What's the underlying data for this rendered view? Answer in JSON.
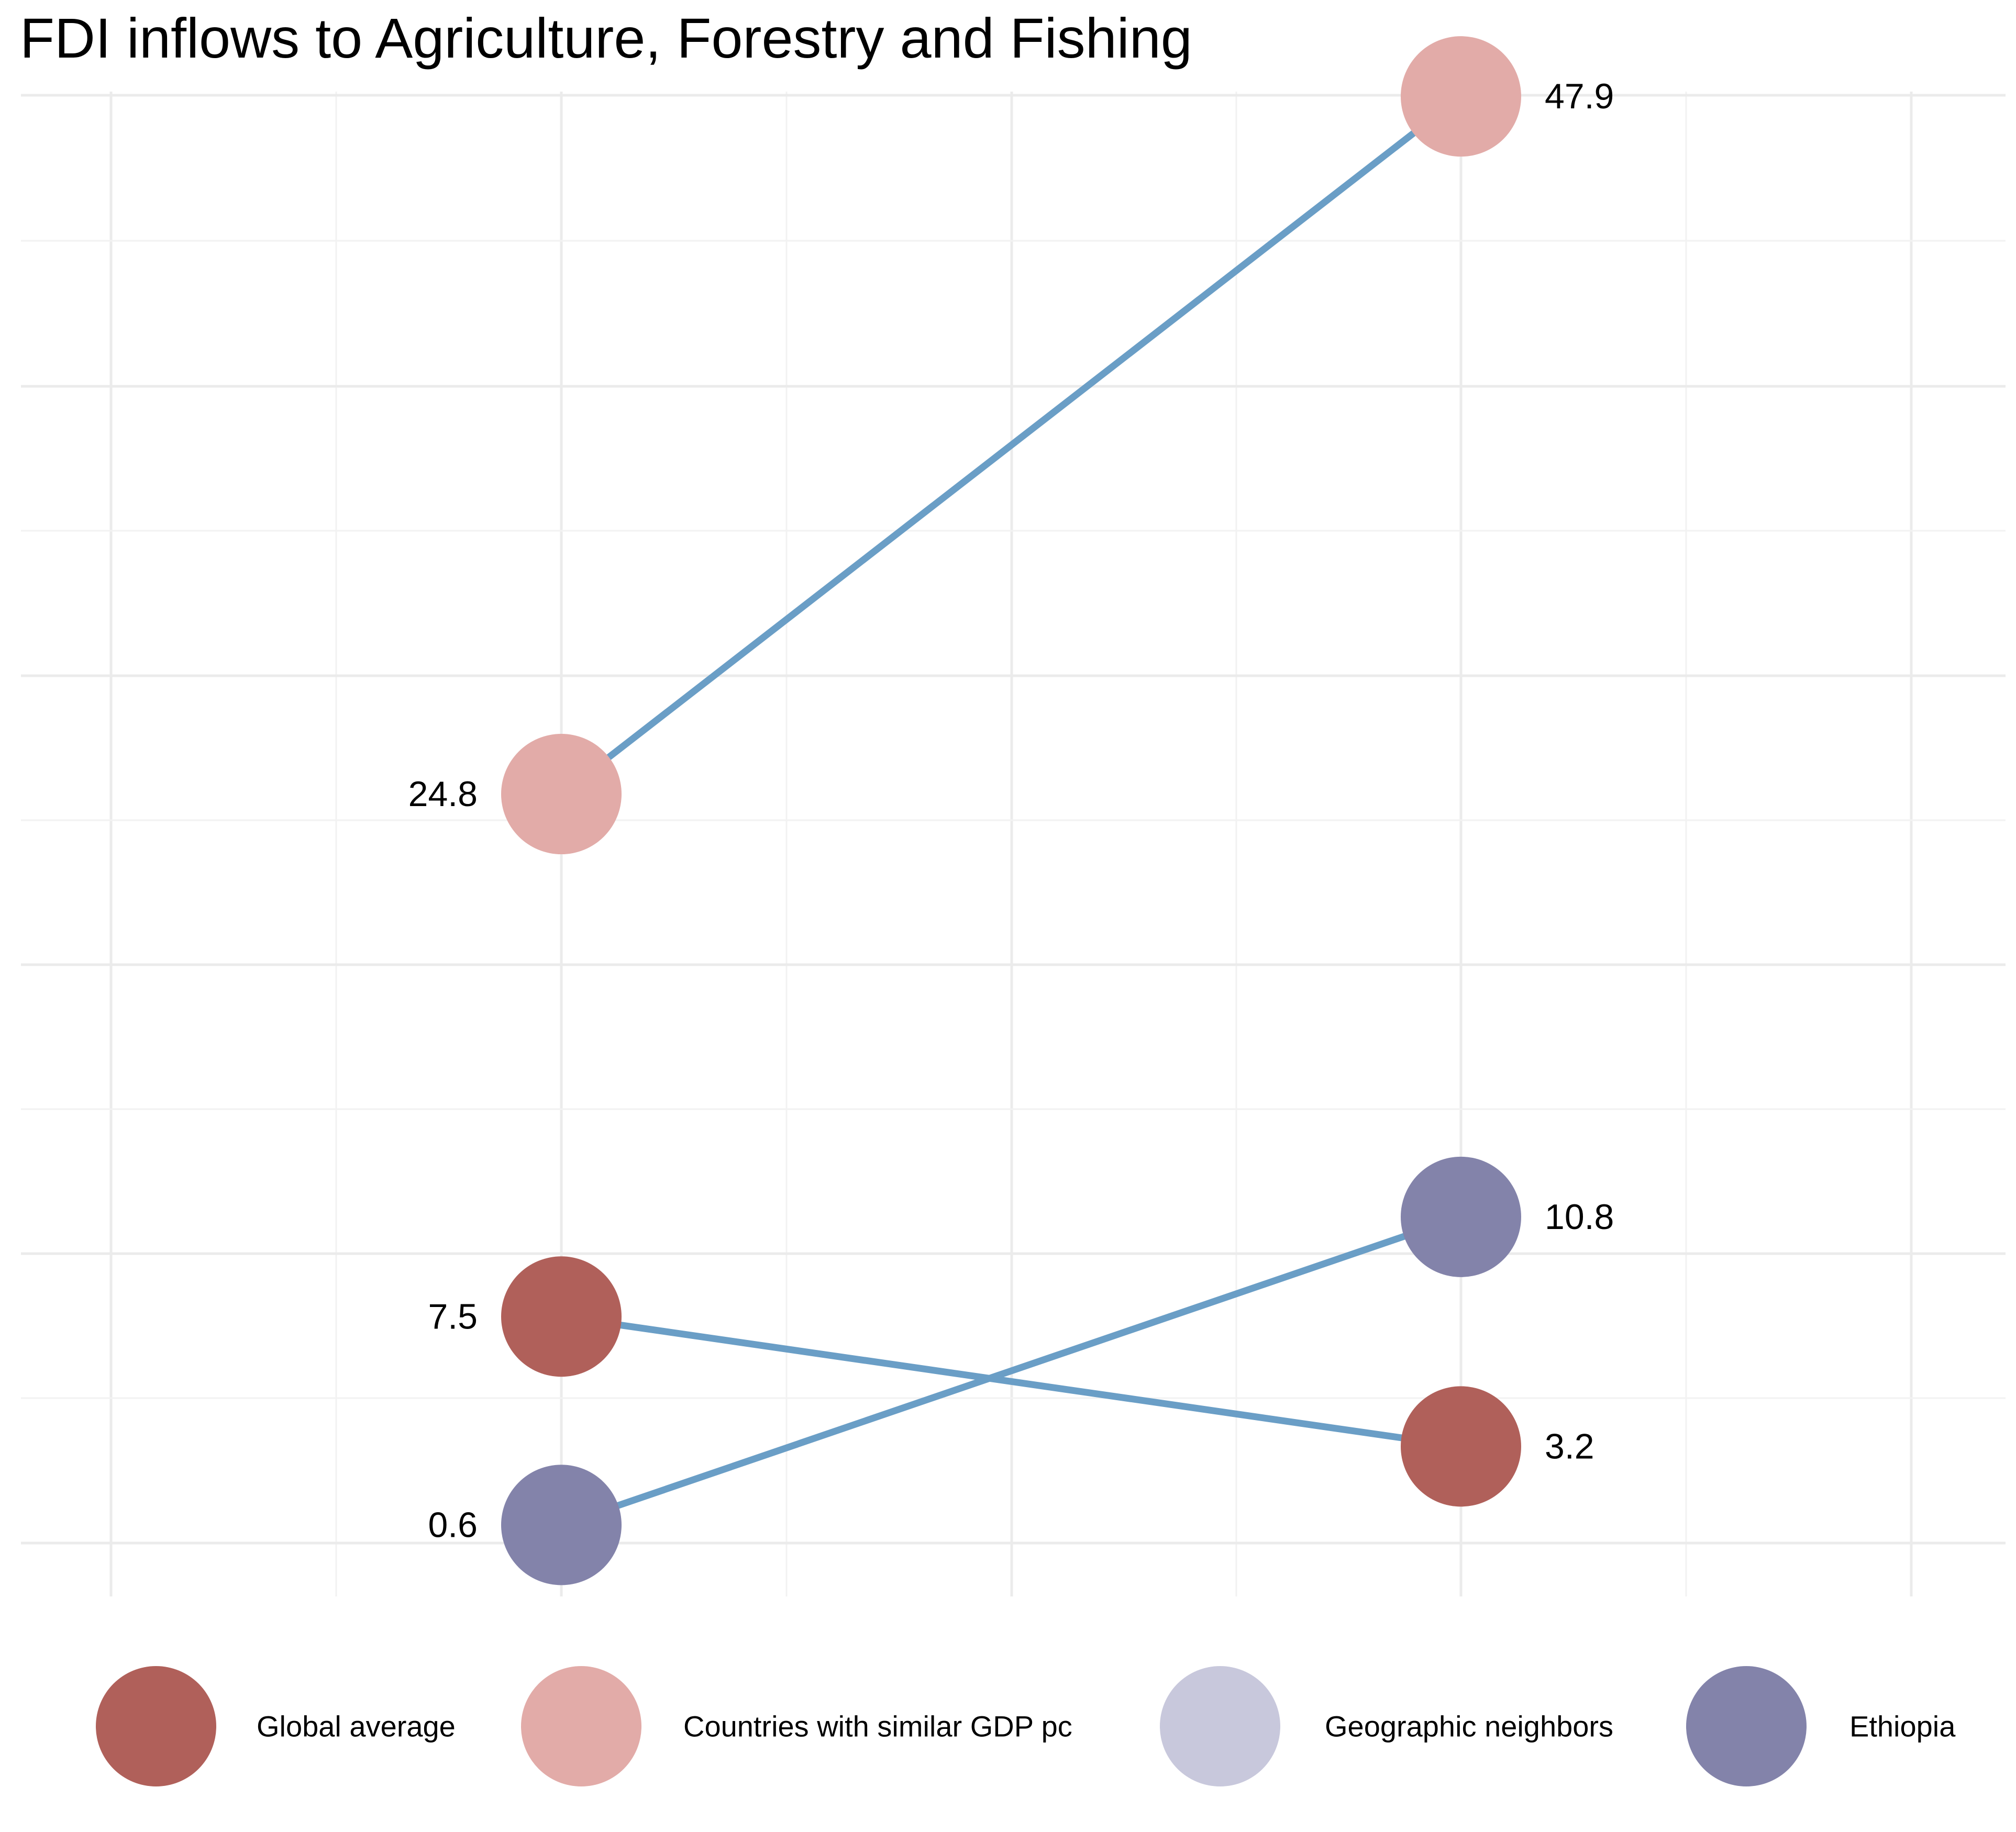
{
  "chart_data": {
    "type": "slope",
    "title": "FDI inflows to Agriculture, Forestry and Fishing",
    "xlabel": "",
    "ylabel": "",
    "grid": true,
    "legend_position": "bottom",
    "series": [
      {
        "name": "Global average",
        "color": "#B0605A",
        "values": [
          7.5,
          3.2
        ],
        "labels": [
          "7.5",
          "3.2"
        ]
      },
      {
        "name": "Countries with similar GDP pc",
        "color": "#E2ABA8",
        "values": [
          24.8,
          47.9
        ],
        "labels": [
          "24.8",
          "47.9"
        ]
      },
      {
        "name": "Geographic neighbors",
        "color": "#C8C8DC",
        "values": [],
        "labels": []
      },
      {
        "name": "Ethiopia",
        "color": "#8383AA",
        "values": [
          0.6,
          10.8
        ],
        "labels": [
          "0.6",
          "10.8"
        ]
      }
    ],
    "line_color": "#6A9EC6"
  }
}
